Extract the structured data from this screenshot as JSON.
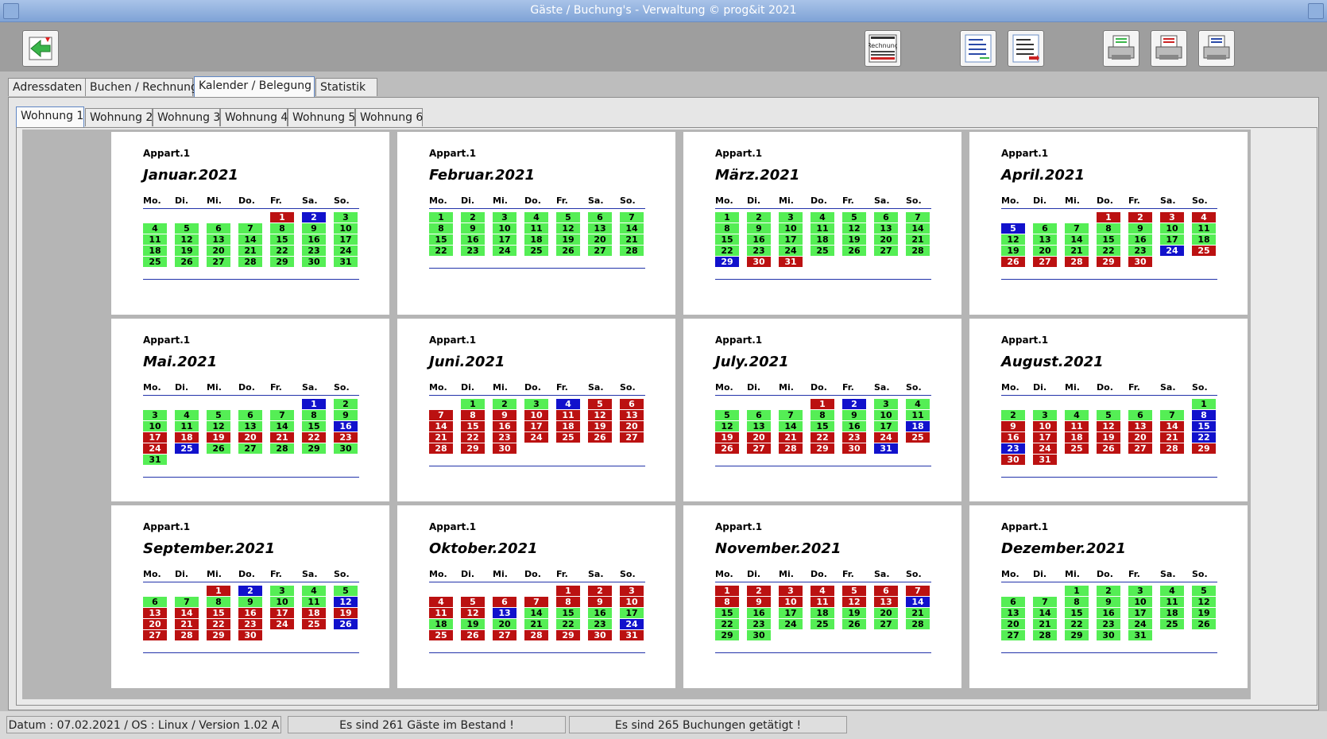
{
  "window": {
    "title": "Gäste / Buchung's - Verwaltung ©    prog&it 2021"
  },
  "toolbar": {
    "buttons": [
      {
        "name": "back-button",
        "icon": "arrow-left-icon"
      },
      {
        "name": "invoice-button",
        "icon": "invoice-icon",
        "label": "Rechnung"
      },
      {
        "name": "list-report-button",
        "icon": "list-report-icon"
      },
      {
        "name": "list-export-button",
        "icon": "list-export-icon"
      },
      {
        "name": "print-green-button",
        "icon": "printer-icon"
      },
      {
        "name": "print-red-button",
        "icon": "printer-icon"
      },
      {
        "name": "print-blue-button",
        "icon": "printer-icon"
      }
    ]
  },
  "main_tabs": [
    "Adressdaten",
    "Buchen / Rechnung",
    "Kalender  /  Belegung",
    "Statistik"
  ],
  "main_tab_active": 2,
  "apartment_tabs": [
    "Wohnung 1",
    "Wohnung 2",
    "Wohnung 3",
    "Wohnung 4",
    "Wohnung 5",
    "Wohnung 6"
  ],
  "apartment_tab_active": 0,
  "calendar": {
    "apartment_label": "Appart.1",
    "weekdays": [
      "Mo.",
      "Di.",
      "Mi.",
      "Do.",
      "Fr.",
      "Sa.",
      "So."
    ],
    "status_colors": {
      "free": "#55ee55",
      "booked": "#bb1111",
      "arrival": "#1111cc"
    },
    "months": [
      {
        "title": "Januar.2021",
        "offset": 4,
        "days": 31,
        "booked": [
          1
        ],
        "arrival": [
          2
        ]
      },
      {
        "title": "Februar.2021",
        "offset": 0,
        "days": 28,
        "booked": [],
        "arrival": []
      },
      {
        "title": "März.2021",
        "offset": 0,
        "days": 31,
        "booked": [
          30,
          31
        ],
        "arrival": [
          29
        ]
      },
      {
        "title": "April.2021",
        "offset": 3,
        "days": 30,
        "booked": [
          1,
          2,
          3,
          4,
          25,
          26,
          27,
          28,
          29,
          30
        ],
        "arrival": [
          5,
          24
        ]
      },
      {
        "title": "Mai.2021",
        "offset": 5,
        "days": 31,
        "booked": [
          17,
          18,
          19,
          20,
          21,
          22,
          23,
          24
        ],
        "arrival": [
          1,
          16,
          25
        ]
      },
      {
        "title": "Juni.2021",
        "offset": 1,
        "days": 30,
        "booked": [
          5,
          6,
          7,
          8,
          9,
          10,
          11,
          12,
          13,
          14,
          15,
          16,
          17,
          18,
          19,
          20,
          21,
          22,
          23,
          24,
          25,
          26,
          27,
          28,
          29,
          30
        ],
        "arrival": [
          4
        ]
      },
      {
        "title": "July.2021",
        "offset": 3,
        "days": 31,
        "booked": [
          1,
          19,
          20,
          21,
          22,
          23,
          24,
          25,
          26,
          27,
          28,
          29,
          30
        ],
        "arrival": [
          2,
          18,
          31
        ]
      },
      {
        "title": "August.2021",
        "offset": 6,
        "days": 31,
        "booked": [
          9,
          10,
          11,
          12,
          13,
          14,
          16,
          17,
          18,
          19,
          20,
          21,
          24,
          25,
          26,
          27,
          28,
          29,
          30,
          31
        ],
        "arrival": [
          8,
          15,
          22,
          23
        ]
      },
      {
        "title": "September.2021",
        "offset": 2,
        "days": 30,
        "booked": [
          1,
          13,
          14,
          15,
          16,
          17,
          18,
          19,
          20,
          21,
          22,
          23,
          24,
          25,
          27,
          28,
          29,
          30
        ],
        "arrival": [
          2,
          12,
          26
        ]
      },
      {
        "title": "Oktober.2021",
        "offset": 4,
        "days": 31,
        "booked": [
          1,
          2,
          3,
          4,
          5,
          6,
          7,
          8,
          9,
          10,
          11,
          12,
          25,
          26,
          27,
          28,
          29,
          30,
          31
        ],
        "arrival": [
          13,
          24
        ]
      },
      {
        "title": "November.2021",
        "offset": 0,
        "days": 30,
        "booked": [
          1,
          2,
          3,
          4,
          5,
          6,
          7,
          8,
          9,
          10,
          11,
          12,
          13
        ],
        "arrival": [
          14
        ]
      },
      {
        "title": "Dezember.2021",
        "offset": 2,
        "days": 31,
        "booked": [],
        "arrival": []
      }
    ]
  },
  "status": {
    "info": "Datum : 07.02.2021 / OS : Linux  /  Version 1.02 A",
    "guests": "Es sind 261 Gäste im Bestand !",
    "bookings": "Es sind 265 Buchungen getätigt !"
  }
}
